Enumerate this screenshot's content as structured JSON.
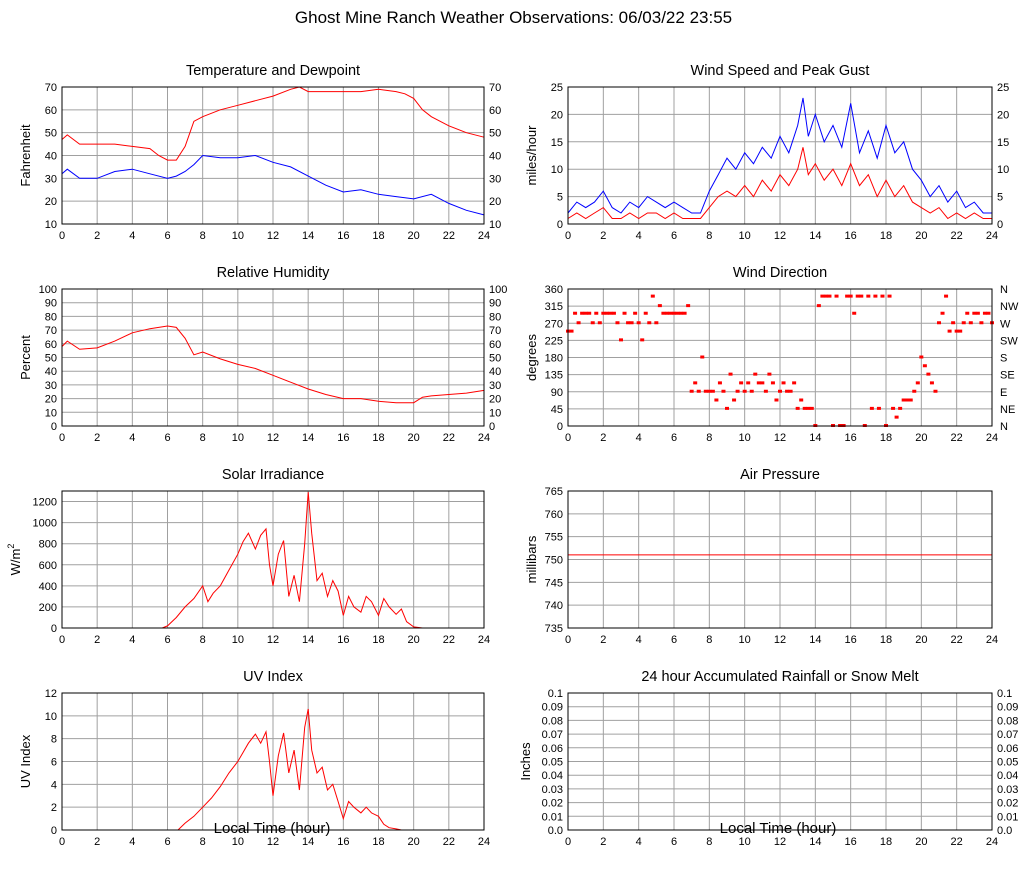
{
  "page": {
    "title": "Ghost Mine Ranch Weather Observations: 06/03/22 23:55",
    "xlabel": "Local Time (hour)"
  },
  "colors": {
    "primary": "#ff0000",
    "secondary": "#0000ff",
    "grid": "#a0a0a0"
  },
  "chart_data": [
    {
      "id": "temp",
      "type": "line",
      "title": "Temperature and Dewpoint",
      "ylabel": "Fahrenheit",
      "xlim": [
        0,
        24
      ],
      "ylim": [
        10,
        70
      ],
      "yticks": [
        10,
        20,
        30,
        40,
        50,
        60,
        70
      ],
      "right_axis": true,
      "grid": true,
      "series": [
        {
          "color": "#ff0000",
          "x": [
            0,
            0.3,
            1,
            2,
            3,
            4,
            5,
            5.5,
            6,
            6.5,
            7,
            7.5,
            8,
            9,
            10,
            11,
            12,
            13,
            13.5,
            14,
            15,
            16,
            17,
            18,
            19,
            19.5,
            20,
            20.5,
            21,
            22,
            23,
            24
          ],
          "y": [
            47,
            49,
            45,
            45,
            45,
            44,
            43,
            40,
            38,
            38,
            44,
            55,
            57,
            60,
            62,
            64,
            66,
            69,
            70,
            68,
            68,
            68,
            68,
            69,
            68,
            67,
            65,
            60,
            57,
            53,
            50,
            48
          ]
        },
        {
          "color": "#0000ff",
          "x": [
            0,
            0.3,
            1,
            2,
            3,
            4,
            5,
            6,
            6.5,
            7,
            7.5,
            8,
            9,
            10,
            11,
            12,
            13,
            14,
            15,
            16,
            17,
            18,
            19,
            20,
            21,
            22,
            23,
            24
          ],
          "y": [
            32,
            34,
            30,
            30,
            33,
            34,
            32,
            30,
            31,
            33,
            36,
            40,
            39,
            39,
            40,
            37,
            35,
            31,
            27,
            24,
            25,
            23,
            22,
            21,
            23,
            19,
            16,
            14
          ]
        }
      ]
    },
    {
      "id": "wind",
      "type": "line",
      "title": "Wind Speed and Peak Gust",
      "ylabel": "miles/hour",
      "xlim": [
        0,
        24
      ],
      "ylim": [
        0,
        25
      ],
      "yticks": [
        0,
        5,
        10,
        15,
        20,
        25
      ],
      "right_axis": true,
      "grid": true,
      "series": [
        {
          "color": "#0000ff",
          "x": [
            0,
            0.5,
            1,
            1.5,
            2,
            2.5,
            3,
            3.5,
            4,
            4.5,
            5,
            5.5,
            6,
            6.5,
            7,
            7.5,
            8,
            8.5,
            9,
            9.5,
            10,
            10.5,
            11,
            11.5,
            12,
            12.5,
            13,
            13.3,
            13.6,
            14,
            14.5,
            15,
            15.5,
            16,
            16.5,
            17,
            17.5,
            18,
            18.5,
            19,
            19.5,
            20,
            20.5,
            21,
            21.5,
            22,
            22.5,
            23,
            23.5,
            24
          ],
          "y": [
            2,
            4,
            3,
            4,
            6,
            3,
            2,
            4,
            3,
            5,
            4,
            3,
            4,
            3,
            2,
            2,
            6,
            9,
            12,
            10,
            13,
            11,
            14,
            12,
            16,
            13,
            18,
            23,
            16,
            20,
            15,
            18,
            14,
            22,
            13,
            17,
            12,
            18,
            13,
            15,
            10,
            8,
            5,
            7,
            4,
            6,
            3,
            4,
            2,
            2
          ]
        },
        {
          "color": "#ff0000",
          "x": [
            0,
            0.5,
            1,
            1.5,
            2,
            2.5,
            3,
            3.5,
            4,
            4.5,
            5,
            5.5,
            6,
            6.5,
            7,
            7.5,
            8,
            8.5,
            9,
            9.5,
            10,
            10.5,
            11,
            11.5,
            12,
            12.5,
            13,
            13.3,
            13.6,
            14,
            14.5,
            15,
            15.5,
            16,
            16.5,
            17,
            17.5,
            18,
            18.5,
            19,
            19.5,
            20,
            20.5,
            21,
            21.5,
            22,
            22.5,
            23,
            23.5,
            24
          ],
          "y": [
            1,
            2,
            1,
            2,
            3,
            1,
            1,
            2,
            1,
            2,
            2,
            1,
            2,
            1,
            1,
            1,
            3,
            5,
            6,
            5,
            7,
            5,
            8,
            6,
            9,
            7,
            10,
            14,
            9,
            11,
            8,
            10,
            7,
            11,
            7,
            9,
            5,
            8,
            5,
            7,
            4,
            3,
            2,
            3,
            1,
            2,
            1,
            2,
            1,
            1
          ]
        }
      ]
    },
    {
      "id": "rh",
      "type": "line",
      "title": "Relative Humidity",
      "ylabel": "Percent",
      "xlim": [
        0,
        24
      ],
      "ylim": [
        0,
        100
      ],
      "yticks": [
        0,
        10,
        20,
        30,
        40,
        50,
        60,
        70,
        80,
        90,
        100
      ],
      "right_axis": true,
      "grid": true,
      "series": [
        {
          "color": "#ff0000",
          "x": [
            0,
            0.3,
            1,
            2,
            3,
            4,
            5,
            5.5,
            6,
            6.5,
            7,
            7.5,
            8,
            9,
            10,
            11,
            12,
            13,
            14,
            15,
            16,
            17,
            18,
            19,
            20,
            20.5,
            21,
            22,
            23,
            24
          ],
          "y": [
            58,
            62,
            56,
            57,
            62,
            68,
            71,
            72,
            73,
            72,
            64,
            52,
            54,
            49,
            45,
            42,
            37,
            32,
            27,
            23,
            20,
            20,
            18,
            17,
            17,
            21,
            22,
            23,
            24,
            26
          ]
        }
      ]
    },
    {
      "id": "wdir",
      "type": "scatter",
      "title": "Wind Direction",
      "ylabel": "degrees",
      "xlim": [
        0,
        24
      ],
      "ylim": [
        0,
        360
      ],
      "yticks": [
        0,
        45,
        90,
        135,
        180,
        225,
        270,
        315,
        360
      ],
      "right_labels": [
        "N",
        "NE",
        "E",
        "SE",
        "S",
        "SW",
        "W",
        "NW",
        "N"
      ],
      "grid": true,
      "series": [
        {
          "color": "#ff0000",
          "x": [
            0,
            0.2,
            0.4,
            0.6,
            0.8,
            1,
            1.2,
            1.4,
            1.6,
            1.8,
            2,
            2.2,
            2.4,
            2.6,
            2.8,
            3,
            3.2,
            3.4,
            3.6,
            3.8,
            4,
            4.2,
            4.4,
            4.6,
            4.8,
            5,
            5.2,
            5.4,
            5.6,
            5.8,
            6,
            6.2,
            6.4,
            6.6,
            6.8,
            7,
            7.2,
            7.4,
            7.6,
            7.8,
            8,
            8.2,
            8.4,
            8.6,
            8.8,
            9,
            9.2,
            9.4,
            9.6,
            9.8,
            10,
            10.2,
            10.4,
            10.6,
            10.8,
            11,
            11.2,
            11.4,
            11.6,
            11.8,
            12,
            12.2,
            12.4,
            12.6,
            12.8,
            13,
            13.2,
            13.4,
            13.6,
            13.8,
            14,
            14.2,
            14.4,
            14.6,
            14.8,
            15,
            15.2,
            15.4,
            15.6,
            15.8,
            16,
            16.2,
            16.4,
            16.6,
            16.8,
            17,
            17.2,
            17.4,
            17.6,
            17.8,
            18,
            18.2,
            18.4,
            18.6,
            18.8,
            19,
            19.2,
            19.4,
            19.6,
            19.8,
            20,
            20.2,
            20.4,
            20.6,
            20.8,
            21,
            21.2,
            21.4,
            21.6,
            21.8,
            22,
            22.2,
            22.4,
            22.6,
            22.8,
            23,
            23.2,
            23.4,
            23.6,
            23.8,
            24
          ],
          "y": [
            248,
            248,
            295,
            270,
            295,
            295,
            295,
            270,
            295,
            270,
            295,
            295,
            295,
            295,
            270,
            225,
            295,
            270,
            270,
            295,
            270,
            225,
            295,
            270,
            340,
            270,
            315,
            295,
            295,
            295,
            295,
            295,
            295,
            295,
            315,
            90,
            112,
            90,
            180,
            90,
            90,
            90,
            67,
            112,
            90,
            45,
            135,
            67,
            90,
            112,
            90,
            112,
            90,
            135,
            112,
            112,
            90,
            135,
            112,
            67,
            90,
            112,
            90,
            90,
            112,
            45,
            67,
            45,
            45,
            45,
            0,
            315,
            340,
            340,
            340,
            0,
            340,
            0,
            0,
            340,
            340,
            295,
            340,
            340,
            0,
            340,
            45,
            340,
            45,
            340,
            0,
            340,
            45,
            22,
            45,
            67,
            67,
            67,
            90,
            112,
            180,
            157,
            135,
            112,
            90,
            270,
            295,
            340,
            248,
            270,
            248,
            248,
            270,
            295,
            270,
            295,
            295,
            270,
            295,
            295,
            270
          ]
        }
      ]
    },
    {
      "id": "solar",
      "type": "line",
      "title": "Solar Irradiance",
      "ylabel": "W/m",
      "ylabel_sup": "2",
      "xlim": [
        0,
        24
      ],
      "ylim": [
        0,
        1300
      ],
      "yticks": [
        0,
        200,
        400,
        600,
        800,
        1000,
        1200
      ],
      "right_axis": false,
      "grid": true,
      "series": [
        {
          "color": "#ff0000",
          "x": [
            0,
            5.7,
            6,
            6.5,
            7,
            7.5,
            8,
            8.3,
            8.6,
            9,
            9.5,
            10,
            10.3,
            10.6,
            11,
            11.3,
            11.6,
            11.8,
            12,
            12.3,
            12.6,
            12.9,
            13.2,
            13.5,
            13.8,
            14,
            14.2,
            14.5,
            14.8,
            15.1,
            15.4,
            15.7,
            16,
            16.3,
            16.6,
            17,
            17.3,
            17.6,
            18,
            18.3,
            18.6,
            19,
            19.3,
            19.6,
            20,
            20.5,
            24
          ],
          "y": [
            0,
            0,
            20,
            100,
            200,
            280,
            400,
            250,
            330,
            400,
            550,
            700,
            820,
            900,
            750,
            880,
            940,
            600,
            400,
            700,
            830,
            300,
            500,
            250,
            800,
            1290,
            900,
            450,
            520,
            300,
            450,
            350,
            120,
            300,
            200,
            150,
            300,
            250,
            120,
            280,
            200,
            130,
            180,
            60,
            10,
            0,
            0
          ]
        }
      ]
    },
    {
      "id": "pressure",
      "type": "line",
      "title": "Air Pressure",
      "ylabel": "millibars",
      "xlim": [
        0,
        24
      ],
      "ylim": [
        735,
        765
      ],
      "yticks": [
        735,
        740,
        745,
        750,
        755,
        760,
        765
      ],
      "right_axis": false,
      "grid": true,
      "series": [
        {
          "color": "#ff0000",
          "x": [
            0,
            24
          ],
          "y": [
            751,
            751
          ]
        }
      ]
    },
    {
      "id": "uv",
      "type": "line",
      "title": "UV Index",
      "ylabel": "UV Index",
      "xlim": [
        0,
        24
      ],
      "ylim": [
        0,
        12
      ],
      "yticks": [
        0,
        2,
        4,
        6,
        8,
        10,
        12
      ],
      "right_axis": false,
      "grid": true,
      "series": [
        {
          "color": "#ff0000",
          "x": [
            0,
            6.6,
            7,
            7.5,
            8,
            8.5,
            9,
            9.5,
            10,
            10.3,
            10.6,
            11,
            11.3,
            11.6,
            11.8,
            12,
            12.3,
            12.6,
            12.9,
            13.2,
            13.5,
            13.8,
            14,
            14.2,
            14.5,
            14.8,
            15.1,
            15.4,
            15.7,
            16,
            16.3,
            16.6,
            17,
            17.3,
            17.6,
            18,
            18.3,
            18.6,
            19,
            19.3,
            24
          ],
          "y": [
            0,
            0,
            0.6,
            1.2,
            2.0,
            2.8,
            3.8,
            5.0,
            6.0,
            6.8,
            7.6,
            8.4,
            7.6,
            8.6,
            6.0,
            3.0,
            6.5,
            8.5,
            5.0,
            7.0,
            3.5,
            9.0,
            10.6,
            7.0,
            5.0,
            5.5,
            3.5,
            4.0,
            2.5,
            1.0,
            2.5,
            2.0,
            1.5,
            2.0,
            1.5,
            1.2,
            0.5,
            0.2,
            0.1,
            0,
            0
          ]
        }
      ]
    },
    {
      "id": "rain",
      "type": "line",
      "title": "24 hour Accumulated Rainfall or Snow Melt",
      "ylabel": "Inches",
      "xlim": [
        0,
        24
      ],
      "ylim": [
        0,
        0.1
      ],
      "yticks": [
        0.0,
        0.01,
        0.02,
        0.03,
        0.04,
        0.05,
        0.06,
        0.07,
        0.08,
        0.09,
        0.1
      ],
      "right_axis": true,
      "grid": true,
      "series": [
        {
          "color": "#ff0000",
          "x": [
            0,
            24
          ],
          "y": [
            0,
            0
          ]
        }
      ]
    }
  ]
}
